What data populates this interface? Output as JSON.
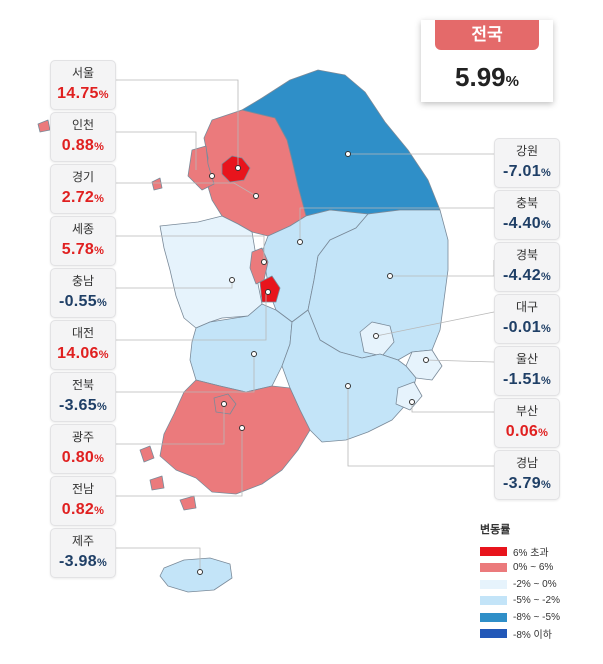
{
  "national": {
    "title": "전국",
    "value": "5.99",
    "unit": "%"
  },
  "regions": [
    {
      "id": "seoul",
      "name": "서울",
      "value": "14.75",
      "sign": "pos"
    },
    {
      "id": "incheon",
      "name": "인천",
      "value": "0.88",
      "sign": "pos"
    },
    {
      "id": "gyeonggi",
      "name": "경기",
      "value": "2.72",
      "sign": "pos"
    },
    {
      "id": "sejong",
      "name": "세종",
      "value": "5.78",
      "sign": "pos"
    },
    {
      "id": "chungnam",
      "name": "충남",
      "value": "-0.55",
      "sign": "neg"
    },
    {
      "id": "daejeon",
      "name": "대전",
      "value": "14.06",
      "sign": "pos"
    },
    {
      "id": "jeonbuk",
      "name": "전북",
      "value": "-3.65",
      "sign": "neg"
    },
    {
      "id": "gwangju",
      "name": "광주",
      "value": "0.80",
      "sign": "pos"
    },
    {
      "id": "jeonnam",
      "name": "전남",
      "value": "0.82",
      "sign": "pos"
    },
    {
      "id": "jeju",
      "name": "제주",
      "value": "-3.98",
      "sign": "neg"
    },
    {
      "id": "gangwon",
      "name": "강원",
      "value": "-7.01",
      "sign": "neg"
    },
    {
      "id": "chungbuk",
      "name": "충북",
      "value": "-4.40",
      "sign": "neg"
    },
    {
      "id": "gyeongbuk",
      "name": "경북",
      "value": "-4.42",
      "sign": "neg"
    },
    {
      "id": "daegu",
      "name": "대구",
      "value": "-0.01",
      "sign": "neg"
    },
    {
      "id": "ulsan",
      "name": "울산",
      "value": "-1.51",
      "sign": "neg"
    },
    {
      "id": "busan",
      "name": "부산",
      "value": "0.06",
      "sign": "pos"
    },
    {
      "id": "gyeongnam",
      "name": "경남",
      "value": "-3.79",
      "sign": "neg"
    }
  ],
  "legend": {
    "title": "변동률",
    "items": [
      {
        "label": "6% 초과",
        "color": "#e8141c"
      },
      {
        "label": "0% ~ 6%",
        "color": "#eb7a7c"
      },
      {
        "label": "-2% ~ 0%",
        "color": "#e6f3fc"
      },
      {
        "label": "-5% ~ -2%",
        "color": "#c3e4f8"
      },
      {
        "label": "-8% ~ -5%",
        "color": "#2f8fc8"
      },
      {
        "label": "-8% 이하",
        "color": "#2258b8"
      }
    ]
  },
  "colors": {
    "positive": "#e02020",
    "negative": "#1f3f66"
  }
}
